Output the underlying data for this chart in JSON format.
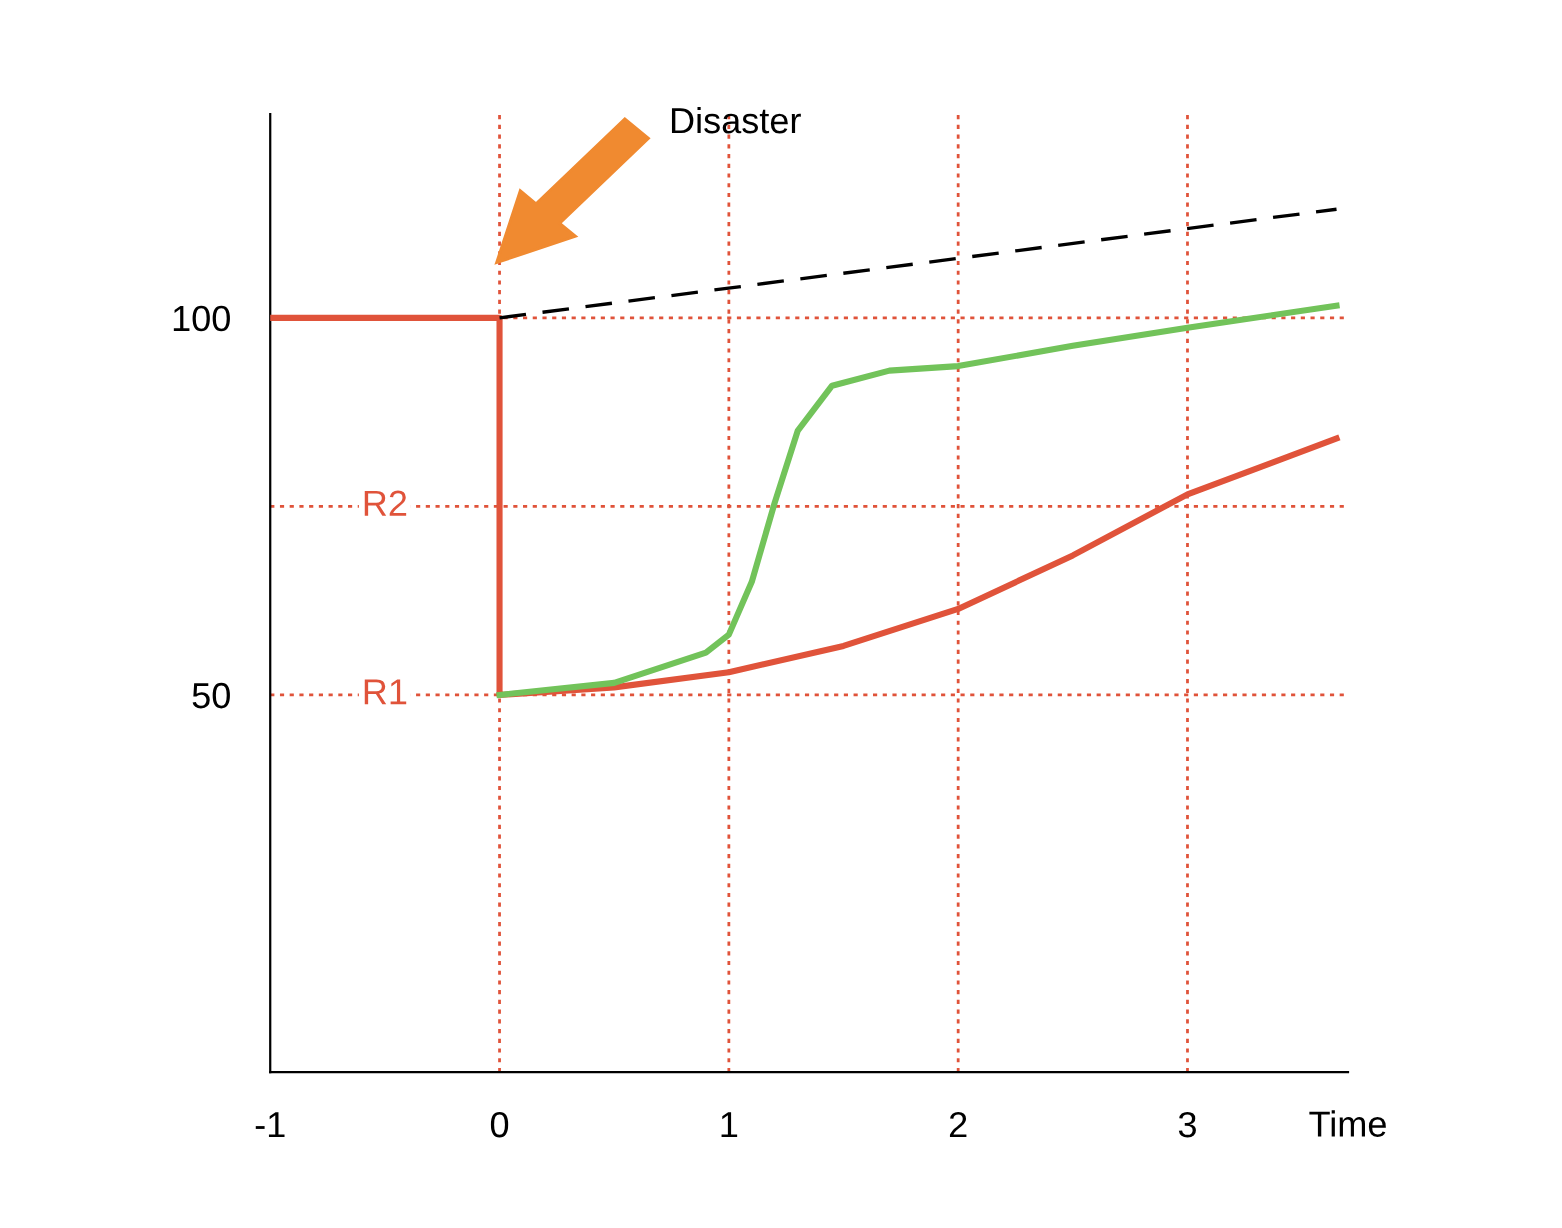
{
  "chart_data": {
    "type": "line",
    "xlabel": "Time",
    "xlim": [
      -1,
      3.7
    ],
    "ylim": [
      0,
      127
    ],
    "xticks": [
      -1,
      0,
      1,
      2,
      3
    ],
    "yticks": [
      50,
      100
    ],
    "grid": false,
    "legend": false,
    "marker": "none",
    "series": [
      {
        "color": "#e0533a",
        "x": [
          -1,
          0,
          0,
          0.5,
          1,
          1.5,
          2,
          2.5,
          3,
          3.65
        ],
        "values": [
          100,
          100,
          50,
          51,
          53,
          56.5,
          61.4,
          68.5,
          76.6,
          84
        ]
      },
      {
        "color": "#72c35a",
        "x": [
          0,
          0.5,
          0.9,
          1,
          1.1,
          1.2,
          1.3,
          1.45,
          1.7,
          2,
          2.5,
          3,
          3.65
        ],
        "values": [
          50,
          51.6,
          55.6,
          58,
          65,
          75.5,
          85,
          91,
          93,
          93.6,
          96.3,
          98.7,
          101.6
        ]
      },
      {
        "color": "#000000",
        "line_style": "dashed",
        "x": [
          0,
          3.65
        ],
        "values": [
          100,
          114.4
        ]
      }
    ],
    "ref_lines": [
      {
        "axis": "y",
        "value": 100,
        "label": null,
        "color": "#e0533a",
        "line_style": "dotted"
      },
      {
        "axis": "y",
        "value": 75,
        "label": "R2",
        "color": "#e0533a",
        "line_style": "dotted"
      },
      {
        "axis": "y",
        "value": 50,
        "label": "R1",
        "color": "#e0533a",
        "line_style": "dotted"
      },
      {
        "axis": "x",
        "value": 0,
        "label": null,
        "color": "#e0533a",
        "line_style": "dotted"
      },
      {
        "axis": "x",
        "value": 1,
        "label": null,
        "color": "#e0533a",
        "line_style": "dotted"
      },
      {
        "axis": "x",
        "value": 2,
        "label": null,
        "color": "#e0533a",
        "line_style": "dotted"
      },
      {
        "axis": "x",
        "value": 3,
        "label": null,
        "color": "#e0533a",
        "line_style": "dotted"
      }
    ],
    "annotations": [
      "Disaster"
    ]
  }
}
